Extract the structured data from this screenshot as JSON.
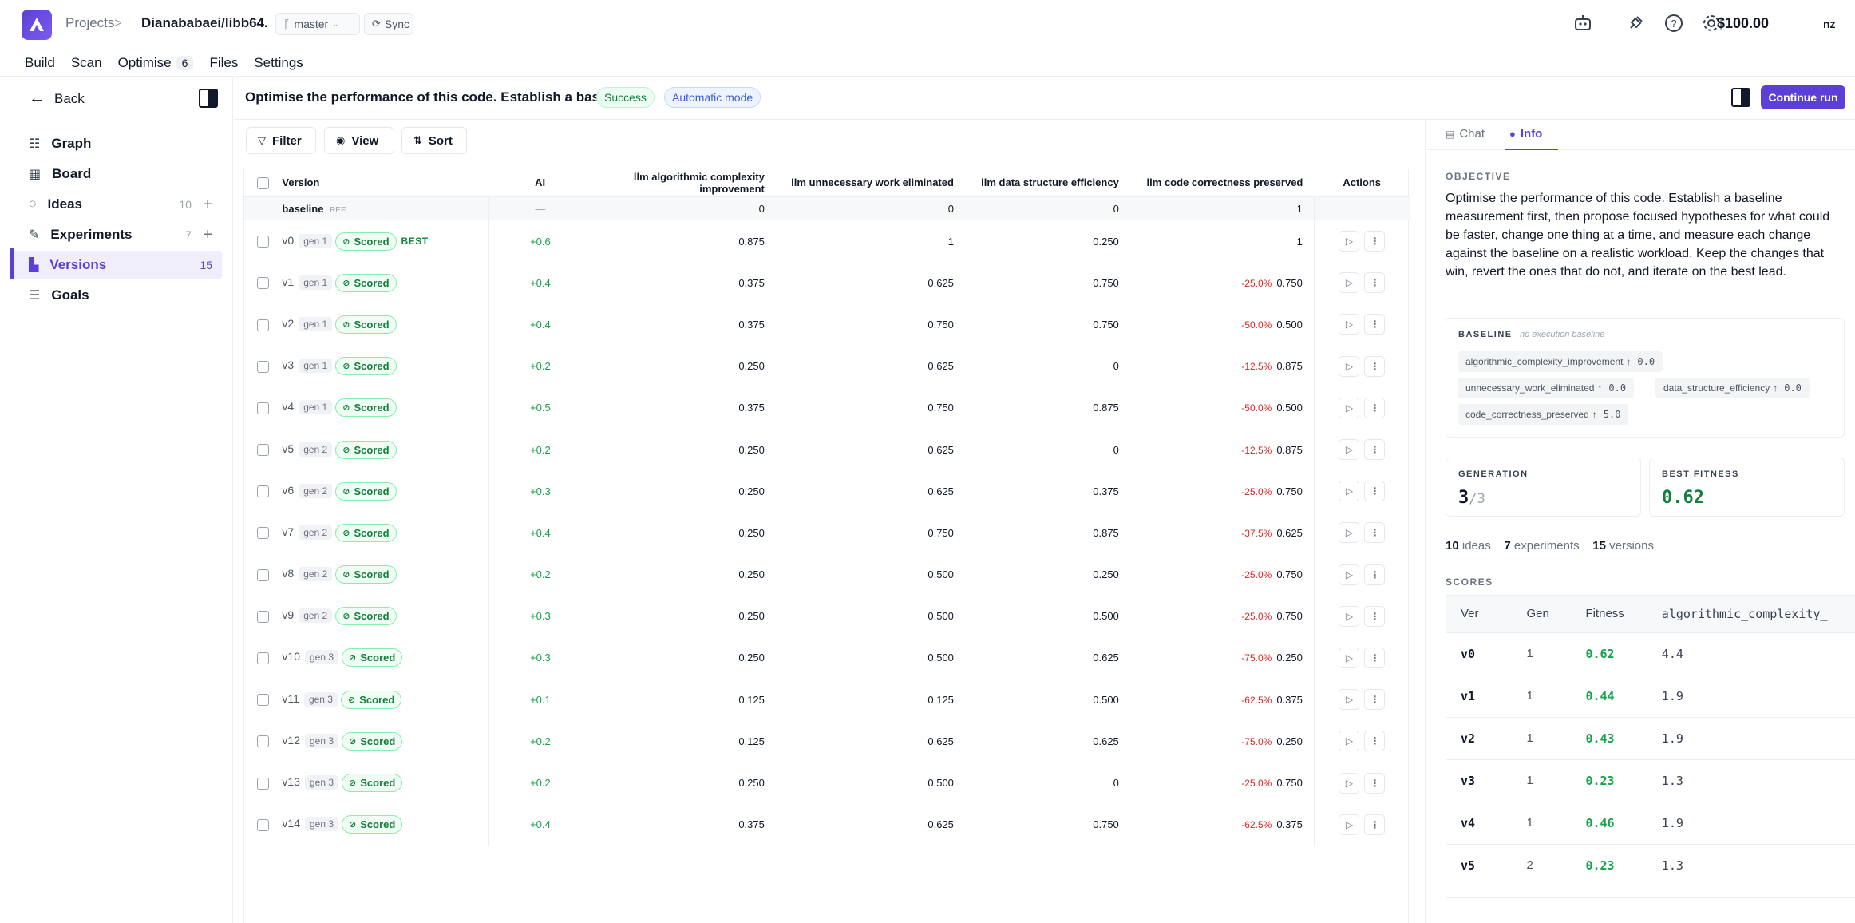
{
  "app": {
    "breadcrumb_projects": "Projects",
    "breadcrumb_sep": ">",
    "repo": "Dianababaei/libb64.",
    "branch": "master",
    "sync": "Sync",
    "balance": "$100.00",
    "user_initials": "nz",
    "brand_color": "#5b3fd6"
  },
  "nav": {
    "tabs": [
      {
        "label": "Build"
      },
      {
        "label": "Scan"
      },
      {
        "label": "Optimise",
        "badge": "6"
      },
      {
        "label": "Files"
      },
      {
        "label": "Settings"
      }
    ]
  },
  "sidebar": {
    "back": "Back",
    "items": [
      {
        "label": "Graph",
        "icon": "graph-icon"
      },
      {
        "label": "Board",
        "icon": "board-icon"
      },
      {
        "label": "Ideas",
        "count": "10",
        "icon": "lightbulb-icon"
      },
      {
        "label": "Experiments",
        "count": "7",
        "icon": "flask-icon"
      },
      {
        "label": "Versions",
        "count": "15",
        "icon": "versions-icon",
        "active": true
      },
      {
        "label": "Goals",
        "icon": "sliders-icon"
      }
    ]
  },
  "header": {
    "title": "Optimise the performance of this code. Establish a basel...",
    "status": "Success",
    "mode": "Automatic mode",
    "continue": "Continue run"
  },
  "toolbar": {
    "filter": "Filter",
    "view": "View",
    "sort": "Sort"
  },
  "table": {
    "columns": [
      "Version",
      "AI",
      "llm algorithmic complexity improvement",
      "llm unnecessary work eliminated",
      "llm data structure efficiency",
      "llm code correctness preserved",
      "Actions"
    ],
    "baseline": {
      "name": "baseline",
      "tag": "REF",
      "ai": "—",
      "m1": "0",
      "m2": "0",
      "m3": "0",
      "m4": "1"
    },
    "rows": [
      {
        "ver": "v0",
        "gen": "gen 1",
        "status": "Scored",
        "best": "BEST",
        "ai": "+0.6",
        "m1": "0.875",
        "m2": "1",
        "m3": "0.250",
        "delta": "",
        "m4": "1"
      },
      {
        "ver": "v1",
        "gen": "gen 1",
        "status": "Scored",
        "best": "",
        "ai": "+0.4",
        "m1": "0.375",
        "m2": "0.625",
        "m3": "0.750",
        "delta": "-25.0%",
        "m4": "0.750"
      },
      {
        "ver": "v2",
        "gen": "gen 1",
        "status": "Scored",
        "best": "",
        "ai": "+0.4",
        "m1": "0.375",
        "m2": "0.750",
        "m3": "0.750",
        "delta": "-50.0%",
        "m4": "0.500"
      },
      {
        "ver": "v3",
        "gen": "gen 1",
        "status": "Scored",
        "best": "",
        "ai": "+0.2",
        "m1": "0.250",
        "m2": "0.625",
        "m3": "0",
        "delta": "-12.5%",
        "m4": "0.875"
      },
      {
        "ver": "v4",
        "gen": "gen 1",
        "status": "Scored",
        "best": "",
        "ai": "+0.5",
        "m1": "0.375",
        "m2": "0.750",
        "m3": "0.875",
        "delta": "-50.0%",
        "m4": "0.500"
      },
      {
        "ver": "v5",
        "gen": "gen 2",
        "status": "Scored",
        "best": "",
        "ai": "+0.2",
        "m1": "0.250",
        "m2": "0.625",
        "m3": "0",
        "delta": "-12.5%",
        "m4": "0.875"
      },
      {
        "ver": "v6",
        "gen": "gen 2",
        "status": "Scored",
        "best": "",
        "ai": "+0.3",
        "m1": "0.250",
        "m2": "0.625",
        "m3": "0.375",
        "delta": "-25.0%",
        "m4": "0.750"
      },
      {
        "ver": "v7",
        "gen": "gen 2",
        "status": "Scored",
        "best": "",
        "ai": "+0.4",
        "m1": "0.250",
        "m2": "0.750",
        "m3": "0.875",
        "delta": "-37.5%",
        "m4": "0.625"
      },
      {
        "ver": "v8",
        "gen": "gen 2",
        "status": "Scored",
        "best": "",
        "ai": "+0.2",
        "m1": "0.250",
        "m2": "0.500",
        "m3": "0.250",
        "delta": "-25.0%",
        "m4": "0.750"
      },
      {
        "ver": "v9",
        "gen": "gen 2",
        "status": "Scored",
        "best": "",
        "ai": "+0.3",
        "m1": "0.250",
        "m2": "0.500",
        "m3": "0.500",
        "delta": "-25.0%",
        "m4": "0.750"
      },
      {
        "ver": "v10",
        "gen": "gen 3",
        "status": "Scored",
        "best": "",
        "ai": "+0.3",
        "m1": "0.250",
        "m2": "0.500",
        "m3": "0.625",
        "delta": "-75.0%",
        "m4": "0.250"
      },
      {
        "ver": "v11",
        "gen": "gen 3",
        "status": "Scored",
        "best": "",
        "ai": "+0.1",
        "m1": "0.125",
        "m2": "0.125",
        "m3": "0.500",
        "delta": "-62.5%",
        "m4": "0.375"
      },
      {
        "ver": "v12",
        "gen": "gen 3",
        "status": "Scored",
        "best": "",
        "ai": "+0.2",
        "m1": "0.125",
        "m2": "0.625",
        "m3": "0.625",
        "delta": "-75.0%",
        "m4": "0.250"
      },
      {
        "ver": "v13",
        "gen": "gen 3",
        "status": "Scored",
        "best": "",
        "ai": "+0.2",
        "m1": "0.250",
        "m2": "0.500",
        "m3": "0",
        "delta": "-25.0%",
        "m4": "0.750"
      },
      {
        "ver": "v14",
        "gen": "gen 3",
        "status": "Scored",
        "best": "",
        "ai": "+0.4",
        "m1": "0.375",
        "m2": "0.625",
        "m3": "0.750",
        "delta": "-62.5%",
        "m4": "0.375"
      }
    ]
  },
  "right_panel": {
    "tab_chat": "Chat",
    "tab_info": "Info",
    "objective_label": "OBJECTIVE",
    "objective_text": "Optimise the performance of this code. Establish a baseline measurement first, then propose focused hypotheses for what could be faster, change one thing at a time, and measure each change against the baseline on a realistic workload. Keep the changes that win, revert the ones that do not, and iterate on the best lead.",
    "baseline_label": "BASELINE",
    "baseline_note": "no execution baseline",
    "baseline_metrics": [
      {
        "name": "algorithmic_complexity_improvement",
        "arrow": "↑",
        "value": "0.0"
      },
      {
        "name": "unnecessary_work_eliminated",
        "arrow": "↑",
        "value": "0.0"
      },
      {
        "name": "data_structure_efficiency",
        "arrow": "↑",
        "value": "0.0"
      },
      {
        "name": "code_correctness_preserved",
        "arrow": "↑",
        "value": "5.0"
      }
    ],
    "generation_label": "GENERATION",
    "generation_value": "3",
    "generation_total": "/3",
    "best_fitness_label": "BEST FITNESS",
    "best_fitness_value": "0.62",
    "counts": {
      "ideas_n": "10",
      "ideas": "ideas",
      "experiments_n": "7",
      "experiments": "experiments",
      "versions_n": "15",
      "versions": "versions"
    },
    "scores_label": "SCORES",
    "scores_columns": [
      "Ver",
      "Gen",
      "Fitness",
      "algorithmic_complexity_"
    ],
    "scores_rows": [
      {
        "ver": "v0",
        "gen": "1",
        "fitness": "0.62",
        "alg": "4.4"
      },
      {
        "ver": "v1",
        "gen": "1",
        "fitness": "0.44",
        "alg": "1.9"
      },
      {
        "ver": "v2",
        "gen": "1",
        "fitness": "0.43",
        "alg": "1.9"
      },
      {
        "ver": "v3",
        "gen": "1",
        "fitness": "0.23",
        "alg": "1.3"
      },
      {
        "ver": "v4",
        "gen": "1",
        "fitness": "0.46",
        "alg": "1.9"
      },
      {
        "ver": "v5",
        "gen": "2",
        "fitness": "0.23",
        "alg": "1.3"
      }
    ]
  }
}
